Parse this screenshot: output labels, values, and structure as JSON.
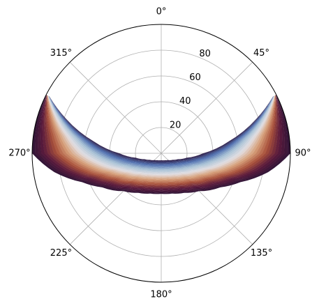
{
  "chart_data": {
    "type": "polar",
    "rlim": [
      0,
      100
    ],
    "rticks": [
      20,
      40,
      60,
      80
    ],
    "thetaticks": [
      {
        "value": 0,
        "label": "0°"
      },
      {
        "value": 45,
        "label": "45°"
      },
      {
        "value": 90,
        "label": "90°"
      },
      {
        "value": 135,
        "label": "135°"
      },
      {
        "value": 180,
        "label": "180°"
      },
      {
        "value": 225,
        "label": "225°"
      },
      {
        "value": 270,
        "label": "270°"
      },
      {
        "value": 315,
        "label": "315°"
      }
    ],
    "grid": true,
    "band": {
      "theta": [
        63,
        70,
        80,
        90,
        100,
        110,
        120,
        135,
        150,
        165,
        180,
        195,
        210,
        225,
        240,
        250,
        260,
        270,
        280,
        290,
        297
      ],
      "r_inner": [
        97.2,
        78.5,
        53.0,
        32.5,
        19.9,
        13.5,
        10.1,
        7.4,
        6.2,
        5.6,
        5.4,
        5.6,
        6.2,
        7.4,
        10.1,
        13.5,
        19.9,
        32.5,
        53.0,
        78.5,
        97.2
      ],
      "r_outer": [
        100,
        100,
        100,
        100,
        84.1,
        65.3,
        52.8,
        41.5,
        35.4,
        32.3,
        31.4,
        32.3,
        35.4,
        41.5,
        52.8,
        65.3,
        84.1,
        100,
        100,
        100,
        100
      ],
      "colors": [
        "#2f1b45",
        "#4f6fb0",
        "#a9c2d6",
        "#e2dfe2",
        "#d7a07a",
        "#a8503a",
        "#5a1a3c",
        "#2f1436"
      ]
    }
  }
}
